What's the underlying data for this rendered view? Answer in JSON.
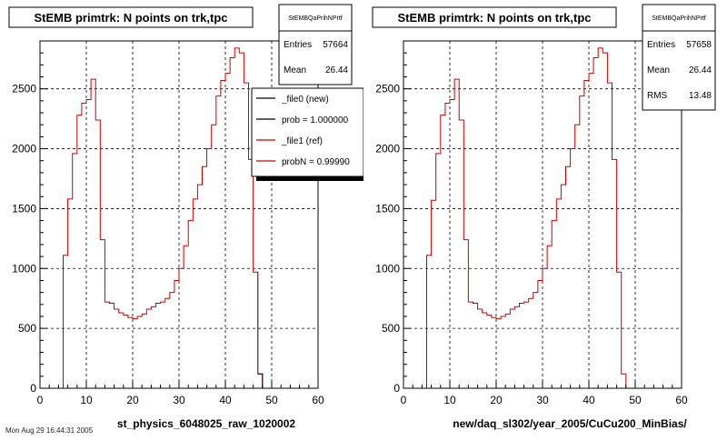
{
  "stamp": "Mon Aug 29 16:44:31 2005",
  "colors": {
    "ref": "#cc0000",
    "new": "#000000",
    "frame": "#000000",
    "grid": "#000000",
    "shadow": "#000000"
  },
  "chart_data": [
    {
      "type": "histogram",
      "title": "StEMB primtrk: N points on trk,tpc",
      "xlabel": "st_physics_6048025_raw_1020002",
      "ylabel": "",
      "xlim": [
        0,
        60
      ],
      "ylim": [
        0,
        2900
      ],
      "xticks": [
        0,
        10,
        20,
        30,
        40,
        50,
        60
      ],
      "yticks": [
        0,
        500,
        1000,
        1500,
        2000,
        2500
      ],
      "grid": true,
      "bin_edges_start": 5,
      "bin_width": 1,
      "series": [
        {
          "name": "_file1 (ref)",
          "color": "#cc0000",
          "values": [
            1110,
            1580,
            1960,
            2280,
            2380,
            2410,
            2580,
            2240,
            1240,
            720,
            710,
            660,
            630,
            610,
            590,
            580,
            600,
            620,
            660,
            680,
            710,
            720,
            750,
            800,
            900,
            1000,
            1190,
            1400,
            1580,
            1700,
            1850,
            2000,
            2200,
            2440,
            2570,
            2630,
            2760,
            2840,
            2800,
            2550,
            1910,
            970,
            120
          ]
        },
        {
          "name": "_file0 (new)",
          "color": "#000000",
          "partial": true,
          "values": [
            1110,
            1570,
            1960,
            2280,
            2380,
            2410,
            2580,
            2240,
            1240,
            720,
            710,
            660,
            630,
            610,
            590,
            580,
            600,
            620,
            660,
            680,
            710,
            720,
            750,
            800,
            900,
            1000,
            1190,
            1400,
            1580,
            1700,
            1850,
            2000,
            2200,
            2440,
            2570,
            2630,
            2760,
            2840,
            2800,
            2550,
            1910,
            970,
            120
          ]
        }
      ],
      "stats": {
        "name": "StEMBQaPrihNPrtf",
        "entries_label": "Entries",
        "entries": "57664",
        "mean_label": "Mean",
        "mean": "26.44"
      },
      "legend": {
        "placement": "top-right",
        "entries": [
          {
            "label": "_file0 (new)",
            "color": "#000000"
          },
          {
            "label": "prob = 1.000000",
            "color": "#000000"
          },
          {
            "label": "_file1 (ref)",
            "color": "#cc0000"
          },
          {
            "label": "probN = 0.99990",
            "color": "#cc0000"
          }
        ]
      }
    },
    {
      "type": "histogram",
      "title": "StEMB primtrk: N points on trk,tpc",
      "xlabel": "new/daq_sl302/year_2005/CuCu200_MinBias/",
      "ylabel": "",
      "xlim": [
        0,
        60
      ],
      "ylim": [
        0,
        2900
      ],
      "xticks": [
        0,
        10,
        20,
        30,
        40,
        50,
        60
      ],
      "yticks": [
        0,
        500,
        1000,
        1500,
        2000,
        2500
      ],
      "grid": true,
      "bin_edges_start": 5,
      "bin_width": 1,
      "series": [
        {
          "name": "ref",
          "color": "#cc0000",
          "values": [
            1110,
            1570,
            1960,
            2280,
            2380,
            2410,
            2580,
            2240,
            1240,
            720,
            710,
            660,
            630,
            610,
            590,
            580,
            600,
            620,
            660,
            680,
            710,
            720,
            750,
            800,
            900,
            1000,
            1190,
            1400,
            1580,
            1700,
            1850,
            2000,
            2200,
            2440,
            2570,
            2630,
            2760,
            2840,
            2800,
            2550,
            1910,
            970,
            120
          ]
        }
      ],
      "stats": {
        "name": "StEMBQaPrihNPrtf",
        "entries_label": "Entries",
        "entries": "57658",
        "mean_label": "Mean",
        "mean": "26.44",
        "rms_label": "RMS",
        "rms": "13.48"
      },
      "legend": null
    }
  ]
}
